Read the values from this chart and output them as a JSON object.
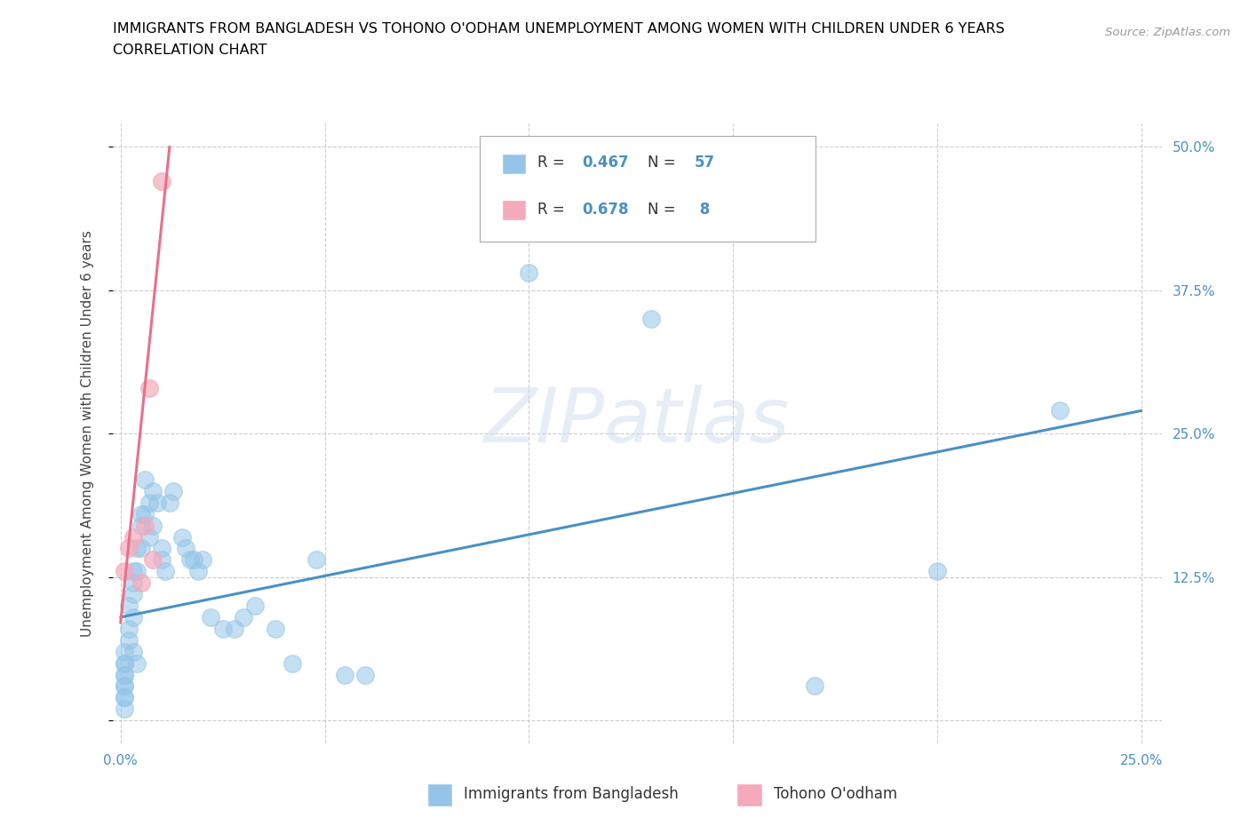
{
  "title_line1": "IMMIGRANTS FROM BANGLADESH VS TOHONO O'ODHAM UNEMPLOYMENT AMONG WOMEN WITH CHILDREN UNDER 6 YEARS",
  "title_line2": "CORRELATION CHART",
  "source": "Source: ZipAtlas.com",
  "ylabel": "Unemployment Among Women with Children Under 6 years",
  "xlim": [
    -0.002,
    0.255
  ],
  "ylim": [
    -0.02,
    0.52
  ],
  "xtick_positions": [
    0.0,
    0.05,
    0.1,
    0.15,
    0.2,
    0.25
  ],
  "xticklabels": [
    "0.0%",
    "",
    "",
    "",
    "",
    "25.0%"
  ],
  "ytick_positions": [
    0.0,
    0.125,
    0.25,
    0.375,
    0.5
  ],
  "yticklabels": [
    "",
    "12.5%",
    "25.0%",
    "37.5%",
    "50.0%"
  ],
  "blue_color": "#94C5E8",
  "pink_color": "#F4AABB",
  "blue_line_color": "#4A90C4",
  "pink_line_color": "#E8708A",
  "watermark": "ZIPatlas",
  "blue_scatter_x": [
    0.001,
    0.001,
    0.001,
    0.001,
    0.001,
    0.001,
    0.001,
    0.001,
    0.001,
    0.001,
    0.002,
    0.002,
    0.002,
    0.003,
    0.003,
    0.003,
    0.003,
    0.003,
    0.004,
    0.004,
    0.004,
    0.005,
    0.005,
    0.005,
    0.006,
    0.006,
    0.007,
    0.007,
    0.008,
    0.008,
    0.009,
    0.01,
    0.01,
    0.011,
    0.012,
    0.013,
    0.015,
    0.016,
    0.017,
    0.018,
    0.019,
    0.02,
    0.022,
    0.025,
    0.028,
    0.03,
    0.033,
    0.038,
    0.042,
    0.048,
    0.055,
    0.06,
    0.1,
    0.13,
    0.17,
    0.2,
    0.23
  ],
  "blue_scatter_y": [
    0.06,
    0.05,
    0.05,
    0.04,
    0.04,
    0.03,
    0.03,
    0.02,
    0.02,
    0.01,
    0.1,
    0.08,
    0.07,
    0.13,
    0.12,
    0.11,
    0.09,
    0.06,
    0.15,
    0.13,
    0.05,
    0.18,
    0.17,
    0.15,
    0.21,
    0.18,
    0.19,
    0.16,
    0.2,
    0.17,
    0.19,
    0.15,
    0.14,
    0.13,
    0.19,
    0.2,
    0.16,
    0.15,
    0.14,
    0.14,
    0.13,
    0.14,
    0.09,
    0.08,
    0.08,
    0.09,
    0.1,
    0.08,
    0.05,
    0.14,
    0.04,
    0.04,
    0.39,
    0.35,
    0.03,
    0.13,
    0.27
  ],
  "pink_scatter_x": [
    0.001,
    0.002,
    0.003,
    0.005,
    0.006,
    0.007,
    0.008,
    0.01
  ],
  "pink_scatter_y": [
    0.13,
    0.15,
    0.16,
    0.12,
    0.17,
    0.29,
    0.14,
    0.47
  ],
  "blue_trend_x": [
    0.0,
    0.25
  ],
  "blue_trend_y": [
    0.09,
    0.27
  ],
  "pink_trend_x": [
    0.0,
    0.012
  ],
  "pink_trend_y": [
    0.085,
    0.5
  ]
}
